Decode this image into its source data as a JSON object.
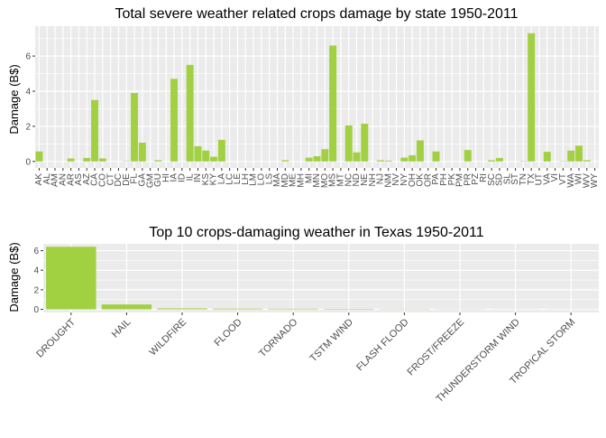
{
  "colors": {
    "bar": "#9acd32",
    "panel": "#ebebeb",
    "grid": "#ffffff",
    "text": "#000000",
    "tick": "#4d4d4d"
  },
  "chart_data": [
    {
      "type": "bar",
      "title": "Total severe weather related crops damage by state 1950-2011",
      "xlabel": "",
      "ylabel": "Damage (B$)",
      "ylim": [
        -0.37,
        7.7
      ],
      "yticks": [
        0,
        2,
        4,
        6
      ],
      "grid": true,
      "categories": [
        "AK",
        "AL",
        "AM",
        "AN",
        "AR",
        "AS",
        "AZ",
        "CA",
        "CO",
        "CT",
        "DC",
        "DE",
        "FL",
        "GA",
        "GM",
        "GU",
        "HI",
        "IA",
        "ID",
        "IL",
        "IN",
        "KS",
        "KY",
        "LA",
        "LC",
        "LE",
        "LH",
        "LM",
        "LO",
        "LS",
        "MA",
        "MD",
        "ME",
        "MH",
        "MI",
        "MN",
        "MO",
        "MS",
        "MT",
        "NC",
        "ND",
        "NE",
        "NH",
        "NJ",
        "NM",
        "NV",
        "NY",
        "OH",
        "OK",
        "OR",
        "PA",
        "PH",
        "PK",
        "PM",
        "PR",
        "PZ",
        "RI",
        "SC",
        "SD",
        "SL",
        "ST",
        "TN",
        "TX",
        "UT",
        "VA",
        "VI",
        "VT",
        "WA",
        "WI",
        "WV",
        "WY"
      ],
      "values": [
        0.57,
        0.0,
        0.0,
        0.0,
        0.17,
        0.0,
        0.2,
        3.5,
        0.17,
        0.0,
        0.0,
        0.02,
        3.9,
        1.07,
        0.0,
        0.07,
        0.0,
        4.7,
        0.0,
        5.5,
        0.87,
        0.62,
        0.27,
        1.23,
        0.0,
        0.0,
        0.0,
        0.0,
        0.0,
        0.0,
        0.0,
        0.07,
        0.0,
        0.0,
        0.22,
        0.3,
        0.7,
        6.6,
        0.0,
        2.05,
        0.52,
        2.15,
        0.0,
        0.07,
        0.05,
        0.0,
        0.22,
        0.35,
        1.2,
        0.0,
        0.57,
        0.0,
        0.0,
        0.0,
        0.65,
        0.0,
        0.0,
        0.07,
        0.2,
        0.0,
        0.0,
        0.02,
        7.3,
        0.0,
        0.55,
        0.0,
        0.02,
        0.62,
        0.9,
        0.07,
        0.0
      ]
    },
    {
      "type": "bar",
      "title": "Top 10 crops-damaging weather in Texas 1950-2011",
      "xlabel": "",
      "ylabel": "Damage (B$)",
      "ylim": [
        -0.32,
        6.7
      ],
      "yticks": [
        0,
        2,
        4,
        6
      ],
      "grid": true,
      "categories": [
        "DROUGHT",
        "HAIL",
        "WILDFIRE",
        "FLOOD",
        "TORNADO",
        "TSTM WIND",
        "FLASH FLOOD",
        "FROST/FREEZE",
        "THUNDERSTORM WIND",
        "TROPICAL STORM"
      ],
      "values": [
        6.4,
        0.5,
        0.1,
        0.07,
        0.06,
        0.05,
        0.03,
        0.02,
        0.01,
        0.01
      ]
    }
  ]
}
